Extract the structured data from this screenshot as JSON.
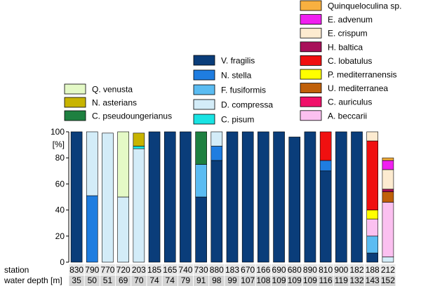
{
  "chart_data": {
    "type": "bar",
    "stacked": true,
    "ylim": [
      0,
      100
    ],
    "ylabel": "[%]",
    "yticks": [
      0,
      20,
      40,
      60,
      80,
      100
    ],
    "row_labels": {
      "station": "station",
      "depth": "water depth [m]"
    },
    "stations": [
      "830",
      "790",
      "770",
      "720",
      "203",
      "185",
      "165",
      "740",
      "730",
      "880",
      "183",
      "670",
      "166",
      "690",
      "680",
      "890",
      "810",
      "900",
      "182",
      "188",
      "212"
    ],
    "water_depths": [
      "35",
      "50",
      "51",
      "69",
      "70",
      "74",
      "74",
      "79",
      "91",
      "98",
      "99",
      "107",
      "108",
      "109",
      "109",
      "109",
      "116",
      "119",
      "132",
      "143",
      "152"
    ],
    "series": [
      {
        "name": "V. fragilis",
        "color": "#0a3d7a",
        "values": [
          100,
          0,
          0,
          0,
          0,
          100,
          100,
          100,
          50,
          78,
          100,
          100,
          100,
          100,
          96,
          100,
          70,
          100,
          100,
          7,
          0
        ]
      },
      {
        "name": "N. stella",
        "color": "#1f7de0",
        "values": [
          0,
          51,
          0,
          0,
          0,
          0,
          0,
          0,
          0,
          11,
          0,
          0,
          0,
          0,
          0,
          0,
          8,
          0,
          0,
          0,
          0
        ]
      },
      {
        "name": "F. fusiformis",
        "color": "#5bbcf2",
        "values": [
          0,
          0,
          0,
          0,
          0,
          0,
          0,
          0,
          25,
          0,
          0,
          0,
          0,
          0,
          0,
          0,
          0,
          0,
          0,
          13,
          0
        ]
      },
      {
        "name": "D. compressa",
        "color": "#d3ecf8",
        "values": [
          0,
          49,
          99,
          50,
          87,
          0,
          0,
          0,
          0,
          11,
          0,
          0,
          0,
          0,
          0,
          0,
          0,
          0,
          0,
          0,
          4
        ]
      },
      {
        "name": "C. pisum",
        "color": "#19e3e3",
        "values": [
          0,
          0,
          0,
          0,
          2,
          0,
          0,
          0,
          0,
          0,
          0,
          0,
          0,
          0,
          0,
          0,
          0,
          0,
          0,
          0,
          0
        ]
      },
      {
        "name": "Q. venusta",
        "color": "#e4f9c6",
        "values": [
          0,
          0,
          0,
          50,
          0,
          0,
          0,
          0,
          0,
          0,
          0,
          0,
          0,
          0,
          0,
          0,
          0,
          0,
          0,
          0,
          0
        ]
      },
      {
        "name": "N. asterians",
        "color": "#c8b400",
        "values": [
          0,
          0,
          0,
          0,
          10,
          0,
          0,
          0,
          0,
          0,
          0,
          0,
          0,
          0,
          0,
          0,
          0,
          0,
          0,
          0,
          0
        ]
      },
      {
        "name": "C. pseudoungerianus",
        "color": "#1e8040",
        "values": [
          0,
          0,
          0,
          0,
          0,
          0,
          0,
          0,
          25,
          0,
          0,
          0,
          0,
          0,
          0,
          0,
          0,
          0,
          0,
          0,
          0
        ]
      },
      {
        "name": "A. beccarii",
        "color": "#fbc0f0",
        "values": [
          0,
          0,
          0,
          0,
          0,
          0,
          0,
          0,
          0,
          0,
          0,
          0,
          0,
          0,
          0,
          0,
          0,
          0,
          0,
          13,
          42
        ]
      },
      {
        "name": "C. auriculus",
        "color": "#f0106a",
        "values": [
          0,
          0,
          0,
          0,
          0,
          0,
          0,
          0,
          0,
          0,
          0,
          0,
          0,
          0,
          0,
          0,
          0,
          0,
          0,
          0,
          0
        ]
      },
      {
        "name": "U. mediterranea",
        "color": "#c0600a",
        "values": [
          0,
          0,
          0,
          0,
          0,
          0,
          0,
          0,
          0,
          0,
          0,
          0,
          0,
          0,
          0,
          0,
          0,
          0,
          0,
          0,
          8
        ]
      },
      {
        "name": "P. mediterranensis",
        "color": "#ffff00",
        "values": [
          0,
          0,
          0,
          0,
          0,
          0,
          0,
          0,
          0,
          0,
          0,
          0,
          0,
          0,
          0,
          0,
          0,
          0,
          0,
          7,
          0
        ]
      },
      {
        "name": "C. lobatulus",
        "color": "#f01010",
        "values": [
          0,
          0,
          0,
          0,
          0,
          0,
          0,
          0,
          0,
          0,
          0,
          0,
          0,
          0,
          0,
          0,
          22,
          0,
          0,
          53,
          0
        ]
      },
      {
        "name": "H. baltica",
        "color": "#a8105a",
        "values": [
          0,
          0,
          0,
          0,
          0,
          0,
          0,
          0,
          0,
          0,
          0,
          0,
          0,
          0,
          0,
          0,
          0,
          0,
          0,
          0,
          2
        ]
      },
      {
        "name": "E. crispum",
        "color": "#fdebd0",
        "values": [
          0,
          0,
          0,
          0,
          0,
          0,
          0,
          0,
          0,
          0,
          0,
          0,
          0,
          0,
          0,
          0,
          0,
          0,
          0,
          7,
          15
        ]
      },
      {
        "name": "E. advenum",
        "color": "#f020f0",
        "values": [
          0,
          0,
          0,
          0,
          0,
          0,
          0,
          0,
          0,
          0,
          0,
          0,
          0,
          0,
          0,
          0,
          0,
          0,
          0,
          0,
          7
        ]
      },
      {
        "name": "Quinqueloculina sp.",
        "color": "#f8b040",
        "values": [
          0,
          0,
          0,
          0,
          0,
          0,
          0,
          0,
          0,
          0,
          0,
          0,
          0,
          0,
          0,
          0,
          0,
          0,
          0,
          0,
          2
        ]
      }
    ],
    "legend_groups": [
      {
        "placement": "upper-left",
        "items": [
          "Q. venusta",
          "N. asterians",
          "C. pseudoungerianus"
        ]
      },
      {
        "placement": "upper-center",
        "items": [
          "V. fragilis",
          "N. stella",
          "F. fusiformis",
          "D. compressa",
          "C. pisum"
        ]
      },
      {
        "placement": "upper-right",
        "items": [
          "Quinqueloculina sp.",
          "E. advenum",
          "E. crispum",
          "H. baltica",
          "C. lobatulus",
          "P. mediterranensis",
          "U. mediterranea",
          "C. auriculus",
          "A. beccarii"
        ]
      }
    ]
  }
}
